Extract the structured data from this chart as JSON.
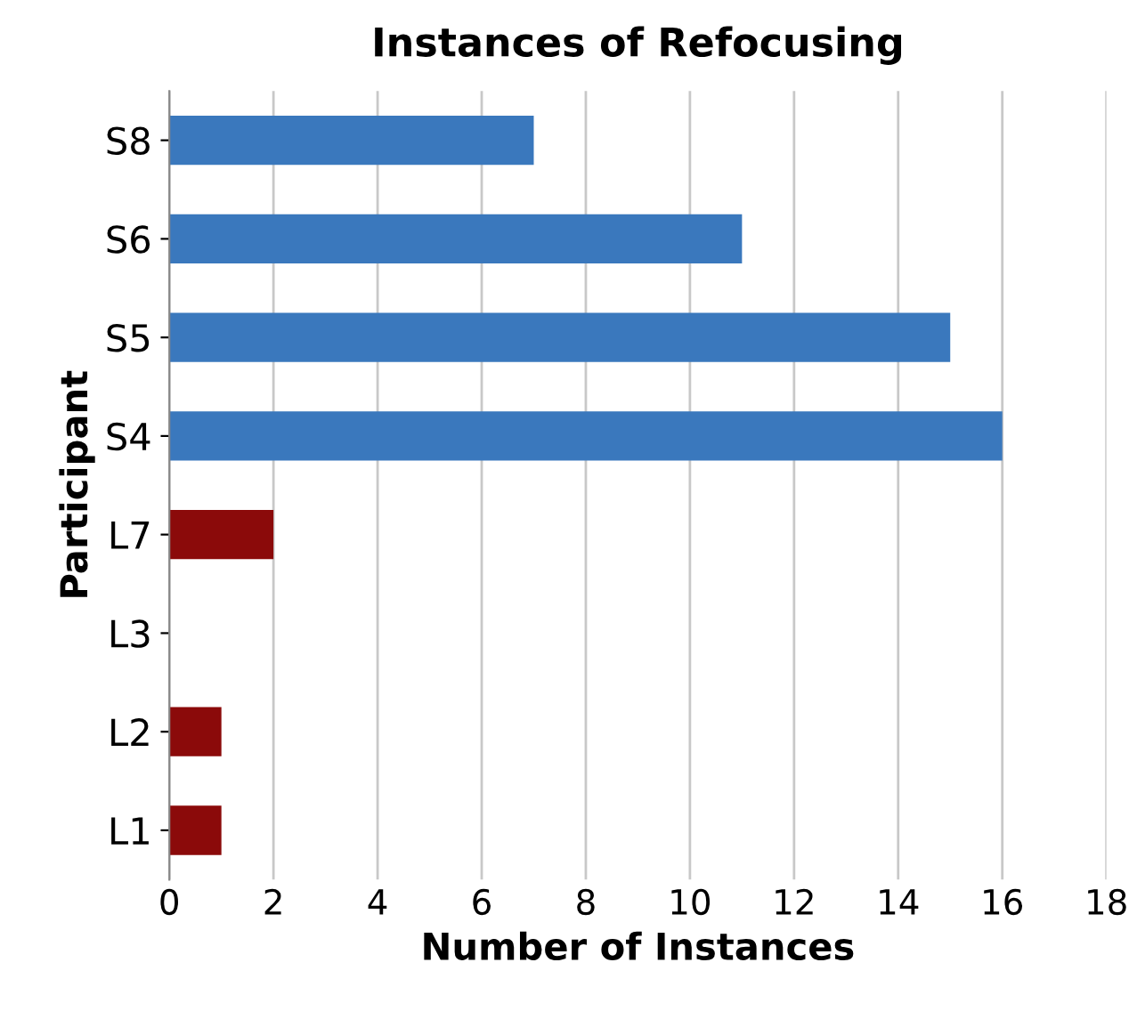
{
  "chart_data": {
    "type": "bar",
    "orientation": "horizontal",
    "title": "Instances of Refocusing",
    "xlabel": "Number of Instances",
    "ylabel": "Participant",
    "categories": [
      "S8",
      "S6",
      "S5",
      "S4",
      "L7",
      "L3",
      "L2",
      "L1"
    ],
    "values": [
      7,
      11,
      15,
      16,
      2,
      0,
      1,
      1
    ],
    "colors": [
      "#3a78bd",
      "#3a78bd",
      "#3a78bd",
      "#3a78bd",
      "#8b0a0a",
      "#8b0a0a",
      "#8b0a0a",
      "#8b0a0a"
    ],
    "xlim": [
      0,
      18
    ],
    "xticks": [
      0,
      2,
      4,
      6,
      8,
      10,
      12,
      14,
      16,
      18
    ],
    "grid": "x"
  }
}
